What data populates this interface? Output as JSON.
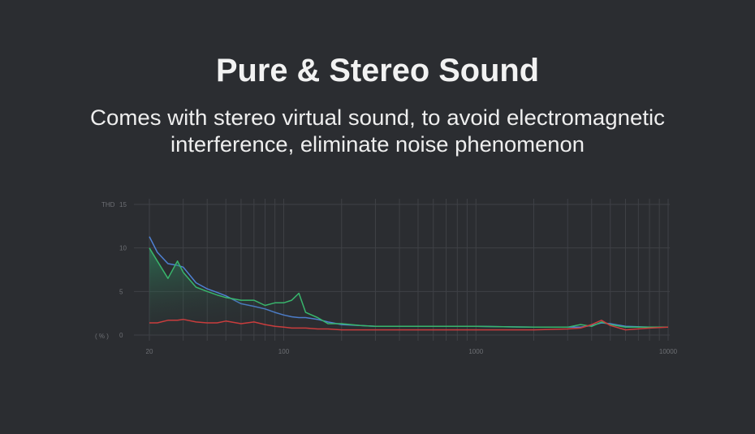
{
  "chart_data": {
    "type": "line",
    "title": "Pure & Stereo Sound",
    "subtitle": [
      "Comes with stereo virtual sound, to avoid electromagnetic",
      "interference, eliminate noise phenomenon"
    ],
    "ylabel_top": "THD",
    "ylabel_bottom": "( % )",
    "log_x": true,
    "xlim": [
      20,
      10000
    ],
    "xticks": [
      20,
      100,
      1000,
      10000
    ],
    "xgrid": [
      20,
      30,
      40,
      50,
      60,
      70,
      80,
      90,
      100,
      200,
      300,
      400,
      500,
      600,
      700,
      800,
      900,
      1000,
      2000,
      3000,
      4000,
      5000,
      6000,
      7000,
      8000,
      9000,
      10000
    ],
    "ylim": [
      0,
      15
    ],
    "yticks": [
      0,
      5,
      10,
      15
    ],
    "grid": true,
    "x": [
      20,
      22,
      25,
      28,
      30,
      35,
      40,
      45,
      50,
      60,
      70,
      80,
      90,
      100,
      110,
      120,
      130,
      150,
      170,
      200,
      250,
      300,
      500,
      1000,
      2000,
      3000,
      3500,
      4000,
      4500,
      5000,
      6000,
      8000,
      10000
    ],
    "series": [
      {
        "name": "Blue",
        "color": "#4f82d4",
        "area": false,
        "values": [
          11.3,
          9.5,
          8.2,
          8.0,
          7.8,
          6.0,
          5.3,
          4.9,
          4.5,
          3.6,
          3.3,
          3.0,
          2.6,
          2.3,
          2.1,
          2.0,
          2.0,
          1.8,
          1.5,
          1.2,
          1.1,
          1.0,
          1.0,
          1.0,
          0.9,
          0.9,
          0.9,
          1.1,
          1.4,
          1.3,
          1.0,
          0.9,
          0.9
        ]
      },
      {
        "name": "Green",
        "color": "#38b56c",
        "area": true,
        "values": [
          10.0,
          8.5,
          6.5,
          8.5,
          7.2,
          5.5,
          5.0,
          4.6,
          4.3,
          4.0,
          4.0,
          3.4,
          3.7,
          3.7,
          4.0,
          4.8,
          2.6,
          2.0,
          1.3,
          1.3,
          1.1,
          1.0,
          1.0,
          1.0,
          0.9,
          0.9,
          1.2,
          1.0,
          1.5,
          1.2,
          0.9,
          0.9,
          0.9
        ]
      },
      {
        "name": "Red",
        "color": "#c93d3d",
        "area": false,
        "values": [
          1.4,
          1.4,
          1.7,
          1.7,
          1.8,
          1.5,
          1.4,
          1.4,
          1.6,
          1.3,
          1.5,
          1.2,
          1.0,
          0.9,
          0.8,
          0.8,
          0.8,
          0.7,
          0.7,
          0.6,
          0.6,
          0.6,
          0.6,
          0.6,
          0.6,
          0.7,
          0.8,
          1.2,
          1.7,
          1.1,
          0.6,
          0.8,
          0.9
        ]
      }
    ]
  }
}
